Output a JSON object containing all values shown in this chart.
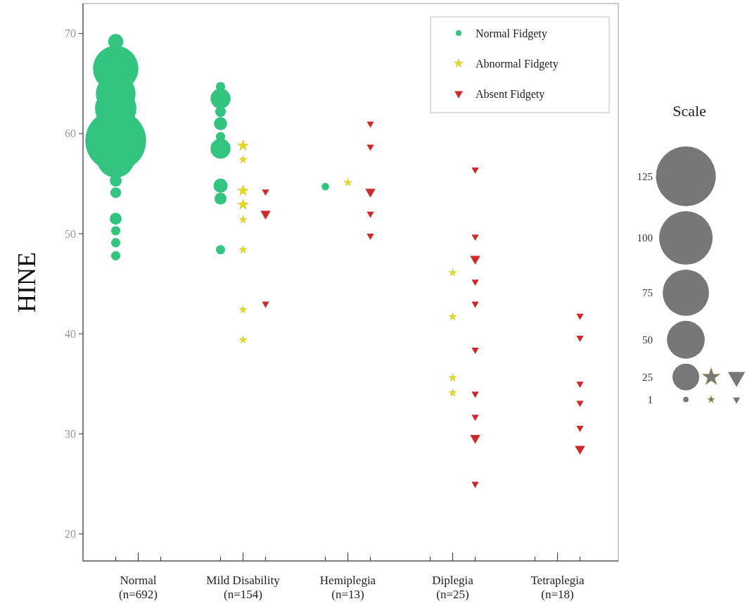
{
  "chart_data": {
    "type": "bubble",
    "categories": [
      "Normal\n(n=692)",
      "Mild Disability\n(n=154)",
      "Hemiplegia\n(n=13)",
      "Diplegia\n(n=25)",
      "Tetraplegia\n(n=18)"
    ],
    "ylabel": "HINE",
    "ylim": [
      17.3,
      73
    ],
    "yticks": [
      20,
      30,
      40,
      50,
      60,
      70
    ],
    "size_legend": [
      1,
      25,
      50,
      75,
      100,
      125
    ],
    "annotations": [
      "Scale"
    ],
    "legend": "top right",
    "series": [
      {
        "name": "Normal Fidgety",
        "color": "#33c47f",
        "marker": "circle",
        "x": [
          "Normal\n(n=692)",
          "Normal\n(n=692)",
          "Normal\n(n=692)",
          "Normal\n(n=692)",
          "Normal\n(n=692)",
          "Normal\n(n=692)",
          "Normal\n(n=692)",
          "Normal\n(n=692)",
          "Normal\n(n=692)",
          "Normal\n(n=692)",
          "Normal\n(n=692)",
          "Normal\n(n=692)",
          "Mild Disability\n(n=154)",
          "Mild Disability\n(n=154)",
          "Mild Disability\n(n=154)",
          "Mild Disability\n(n=154)",
          "Mild Disability\n(n=154)",
          "Mild Disability\n(n=154)",
          "Mild Disability\n(n=154)",
          "Mild Disability\n(n=154)",
          "Mild Disability\n(n=154)",
          "Hemiplegia\n(n=13)"
        ],
        "values": [
          69.2,
          66.5,
          64.0,
          62.5,
          59.3,
          57.5,
          55.3,
          54.1,
          51.5,
          50.3,
          49.1,
          47.8,
          64.7,
          63.5,
          62.2,
          61.0,
          59.7,
          58.5,
          54.8,
          53.5,
          48.4,
          54.7
        ],
        "sizes": [
          8,
          72,
          55,
          60,
          130,
          50,
          5,
          4,
          5,
          3,
          3,
          3,
          3,
          14,
          4,
          6,
          3,
          14,
          7,
          5,
          3,
          2
        ]
      },
      {
        "name": "Abnormal Fidgety",
        "color": "#e3dc1e",
        "marker": "star",
        "x": [
          "Mild Disability\n(n=154)",
          "Mild Disability\n(n=154)",
          "Mild Disability\n(n=154)",
          "Mild Disability\n(n=154)",
          "Mild Disability\n(n=154)",
          "Mild Disability\n(n=154)",
          "Mild Disability\n(n=154)",
          "Mild Disability\n(n=154)",
          "Hemiplegia\n(n=13)",
          "Diplegia\n(n=25)",
          "Diplegia\n(n=25)",
          "Diplegia\n(n=25)",
          "Diplegia\n(n=25)"
        ],
        "values": [
          58.8,
          57.4,
          54.3,
          52.9,
          51.4,
          48.4,
          42.4,
          39.4,
          55.1,
          46.1,
          41.7,
          35.6,
          34.1
        ],
        "sizes": [
          2,
          1,
          2,
          2,
          1,
          1,
          1,
          1,
          1,
          1,
          1,
          1,
          1
        ]
      },
      {
        "name": "Absent Fidgety",
        "color": "#cc2b2b",
        "marker": "triangle",
        "x": [
          "Mild Disability\n(n=154)",
          "Mild Disability\n(n=154)",
          "Mild Disability\n(n=154)",
          "Hemiplegia\n(n=13)",
          "Hemiplegia\n(n=13)",
          "Hemiplegia\n(n=13)",
          "Hemiplegia\n(n=13)",
          "Hemiplegia\n(n=13)",
          "Diplegia\n(n=25)",
          "Diplegia\n(n=25)",
          "Diplegia\n(n=25)",
          "Diplegia\n(n=25)",
          "Diplegia\n(n=25)",
          "Diplegia\n(n=25)",
          "Diplegia\n(n=25)",
          "Diplegia\n(n=25)",
          "Diplegia\n(n=25)",
          "Diplegia\n(n=25)",
          "Tetraplegia\n(n=18)",
          "Tetraplegia\n(n=18)",
          "Tetraplegia\n(n=18)",
          "Tetraplegia\n(n=18)",
          "Tetraplegia\n(n=18)",
          "Tetraplegia\n(n=18)"
        ],
        "values": [
          54.2,
          52.0,
          43.0,
          61.0,
          58.7,
          54.2,
          52.0,
          49.8,
          56.4,
          49.7,
          47.5,
          45.2,
          43.0,
          38.4,
          34.0,
          31.7,
          29.6,
          25.0,
          41.8,
          39.6,
          35.0,
          33.1,
          30.6,
          28.5
        ],
        "sizes": [
          1,
          2,
          1,
          1,
          1,
          2,
          1,
          1,
          1,
          1,
          2,
          1,
          1,
          1,
          1,
          1,
          2,
          1,
          1,
          1,
          1,
          1,
          1,
          2
        ]
      }
    ]
  }
}
